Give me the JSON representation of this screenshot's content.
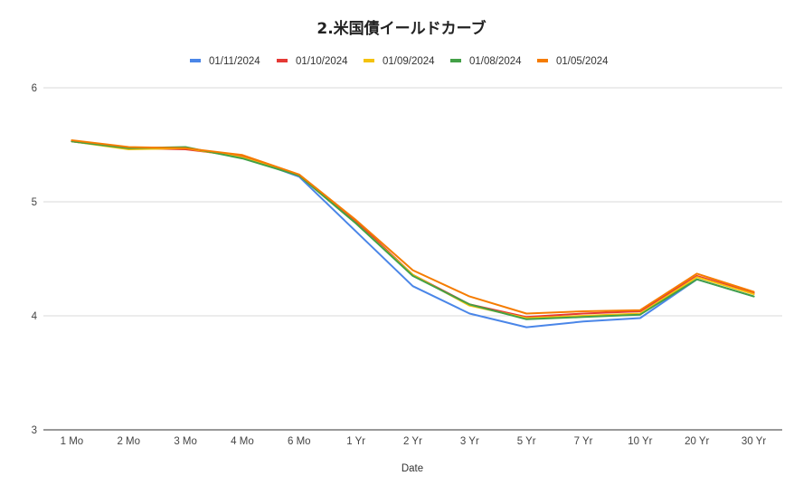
{
  "chart_data": {
    "type": "line",
    "title": "2.米国債イールドカーブ",
    "xlabel": "Date",
    "ylabel": "",
    "ylim": [
      3,
      6
    ],
    "yticks": [
      3,
      4,
      5,
      6
    ],
    "grid": true,
    "legend_position": "top",
    "categories": [
      "1 Mo",
      "2 Mo",
      "3 Mo",
      "4 Mo",
      "6 Mo",
      "1 Yr",
      "2 Yr",
      "3 Yr",
      "5 Yr",
      "7 Yr",
      "10 Yr",
      "20 Yr",
      "30 Yr"
    ],
    "series": [
      {
        "name": "01/11/2024",
        "color": "#4a86e8",
        "values": [
          5.53,
          5.47,
          5.47,
          5.4,
          5.22,
          4.74,
          4.26,
          4.02,
          3.9,
          3.95,
          3.98,
          4.32,
          4.17
        ]
      },
      {
        "name": "01/10/2024",
        "color": "#e53935",
        "values": [
          5.53,
          5.47,
          5.46,
          5.4,
          5.23,
          4.83,
          4.36,
          4.1,
          3.99,
          4.02,
          4.04,
          4.35,
          4.2
        ]
      },
      {
        "name": "01/09/2024",
        "color": "#f4c20d",
        "values": [
          5.53,
          5.46,
          5.47,
          5.39,
          5.23,
          4.81,
          4.36,
          4.09,
          3.98,
          4.0,
          4.02,
          4.34,
          4.19
        ]
      },
      {
        "name": "01/08/2024",
        "color": "#43a047",
        "values": [
          5.53,
          5.47,
          5.48,
          5.38,
          5.23,
          4.81,
          4.35,
          4.1,
          3.97,
          3.99,
          4.01,
          4.32,
          4.17
        ]
      },
      {
        "name": "01/05/2024",
        "color": "#f57c00",
        "values": [
          5.54,
          5.48,
          5.47,
          5.41,
          5.24,
          4.84,
          4.4,
          4.17,
          4.02,
          4.04,
          4.05,
          4.37,
          4.21
        ]
      }
    ]
  }
}
